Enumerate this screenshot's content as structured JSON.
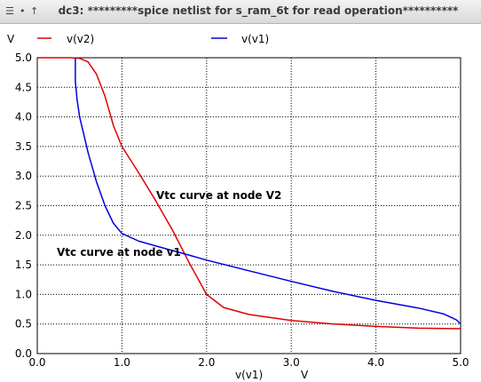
{
  "window": {
    "title": "dc3: *********spice netlist for s_ram_6t for read operation**********",
    "menu_icon": "hamburger-menu-icon",
    "pin_icon": "pin-dot-icon",
    "shade_icon": "up-arrow-icon"
  },
  "chart_data": {
    "type": "line",
    "xlabel": "v(v1)",
    "xunit": "V",
    "yunit": "V",
    "xlim": [
      0.0,
      5.0
    ],
    "ylim": [
      0.0,
      5.0
    ],
    "xticks": [
      "0.0",
      "1.0",
      "2.0",
      "3.0",
      "4.0",
      "5.0"
    ],
    "yticks": [
      "0.0",
      "0.5",
      "1.0",
      "1.5",
      "2.0",
      "2.5",
      "3.0",
      "3.5",
      "4.0",
      "4.5",
      "5.0"
    ],
    "grid": true,
    "legend_position": "top",
    "annotations": [
      "Vtc curve at node V2",
      "Vtc curve at node v1"
    ],
    "series": [
      {
        "name": "v(v2)",
        "color": "#e00000",
        "x": [
          0.0,
          0.4,
          0.5,
          0.6,
          0.7,
          0.8,
          0.9,
          1.0,
          1.2,
          1.4,
          1.6,
          1.8,
          2.0,
          2.2,
          2.5,
          3.0,
          3.5,
          4.0,
          4.5,
          5.0
        ],
        "y": [
          5.0,
          5.0,
          4.99,
          4.93,
          4.72,
          4.35,
          3.85,
          3.5,
          3.05,
          2.58,
          2.08,
          1.52,
          1.0,
          0.78,
          0.66,
          0.56,
          0.5,
          0.46,
          0.43,
          0.42
        ]
      },
      {
        "name": "v(v1)",
        "color": "#0000e0",
        "x": [
          0.45,
          0.45,
          0.47,
          0.5,
          0.55,
          0.6,
          0.7,
          0.8,
          0.9,
          1.0,
          1.2,
          1.5,
          1.8,
          2.0,
          2.5,
          3.0,
          3.5,
          4.0,
          4.5,
          4.8,
          4.95,
          5.0
        ],
        "y": [
          5.0,
          4.6,
          4.3,
          4.0,
          3.7,
          3.4,
          2.9,
          2.5,
          2.2,
          2.03,
          1.9,
          1.78,
          1.66,
          1.58,
          1.4,
          1.22,
          1.05,
          0.9,
          0.77,
          0.67,
          0.57,
          0.5
        ]
      }
    ]
  }
}
